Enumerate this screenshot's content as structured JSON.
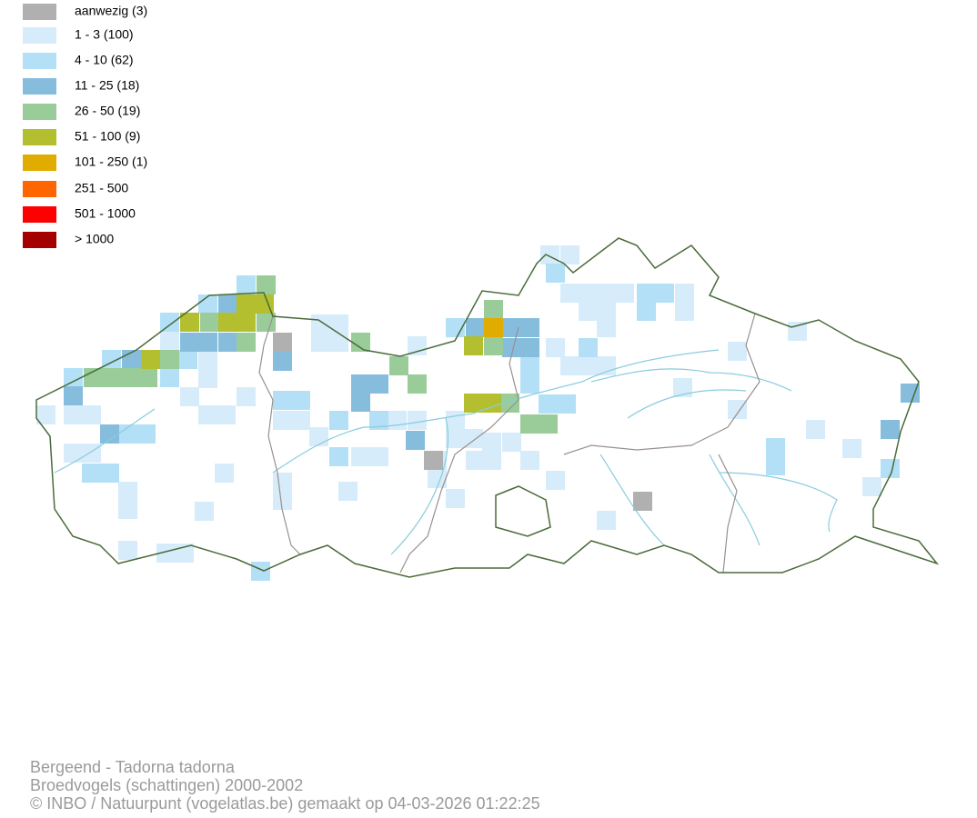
{
  "legend": [
    {
      "label": "aanwezig (3)",
      "color": "#b0b0b0"
    },
    {
      "label": "1 - 3 (100)",
      "color": "#d6ecfa"
    },
    {
      "label": "4 - 10 (62)",
      "color": "#b3e0f7"
    },
    {
      "label": "11 - 25 (18)",
      "color": "#86bddd"
    },
    {
      "label": "26 - 50 (19)",
      "color": "#99cc99"
    },
    {
      "label": "51 - 100 (9)",
      "color": "#b3bf2e"
    },
    {
      "label": "101 - 250 (1)",
      "color": "#e0ac00"
    },
    {
      "label": "251 - 500",
      "color": "#ff6600"
    },
    {
      "label": "501 - 1000",
      "color": "#ff0000"
    },
    {
      "label": "> 1000",
      "color": "#a50000"
    }
  ],
  "footer": {
    "species": "Bergeend - Tadorna tadorna",
    "dataset": "Broedvogels (schattingen) 2000-2002",
    "credit": "© INBO / Natuurpunt (vogelatlas.be) gemaakt op 04-03-2026 01:22:25"
  }
}
